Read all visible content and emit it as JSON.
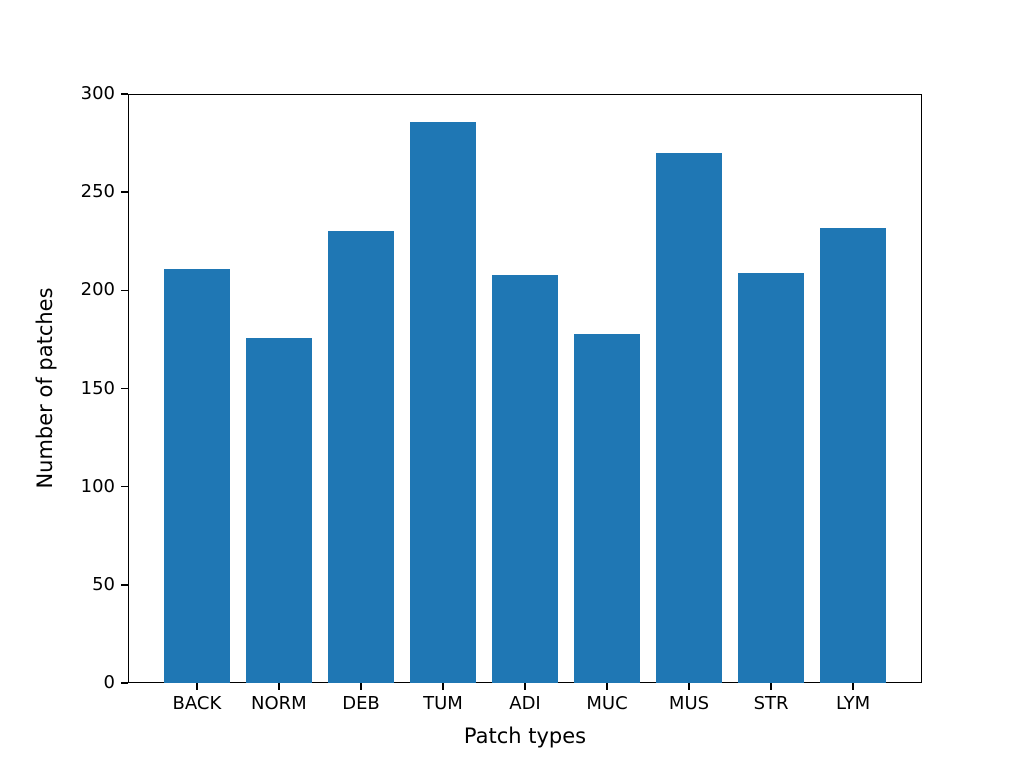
{
  "chart_data": {
    "type": "bar",
    "categories": [
      "BACK",
      "NORM",
      "DEB",
      "TUM",
      "ADI",
      "MUC",
      "MUS",
      "STR",
      "LYM"
    ],
    "values": [
      211,
      176,
      230,
      286,
      208,
      178,
      270,
      209,
      232
    ],
    "title": "",
    "xlabel": "Patch types",
    "ylabel": "Number of patches",
    "ylim": [
      0,
      300
    ],
    "yticks": [
      0,
      50,
      100,
      150,
      200,
      250,
      300
    ],
    "bar_color": "#1f77b4",
    "axis_color": "#000000",
    "background_color": "#ffffff",
    "grid": false,
    "legend": null
  }
}
